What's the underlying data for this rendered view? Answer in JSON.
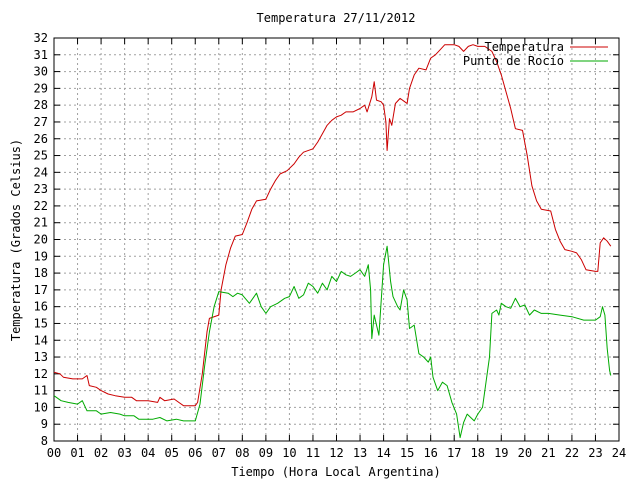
{
  "chart_data": {
    "type": "line",
    "title": "Temperatura 27/11/2012",
    "xlabel": "Tiempo (Hora Local Argentina)",
    "ylabel": "Temperatura (Grados Celsius)",
    "xlim": [
      0,
      24
    ],
    "ylim": [
      8,
      32
    ],
    "x_ticks": [
      "00",
      "01",
      "02",
      "03",
      "04",
      "05",
      "06",
      "07",
      "08",
      "09",
      "10",
      "11",
      "12",
      "13",
      "14",
      "15",
      "16",
      "17",
      "18",
      "19",
      "20",
      "21",
      "22",
      "23",
      "24"
    ],
    "y_ticks": [
      "8",
      "9",
      "10",
      "11",
      "12",
      "13",
      "14",
      "15",
      "16",
      "17",
      "18",
      "19",
      "20",
      "21",
      "22",
      "23",
      "24",
      "25",
      "26",
      "27",
      "28",
      "29",
      "30",
      "31",
      "32"
    ],
    "grid": true,
    "legend_position": "top-right",
    "series": [
      {
        "name": "Temperatura",
        "color": "#cc0000",
        "points": [
          [
            0,
            12.1
          ],
          [
            0.25,
            12.0
          ],
          [
            0.4,
            11.8
          ],
          [
            0.8,
            11.7
          ],
          [
            1.2,
            11.7
          ],
          [
            1.4,
            11.9
          ],
          [
            1.5,
            11.3
          ],
          [
            1.8,
            11.2
          ],
          [
            2.0,
            11.0
          ],
          [
            2.3,
            10.8
          ],
          [
            2.6,
            10.7
          ],
          [
            3.0,
            10.6
          ],
          [
            3.3,
            10.6
          ],
          [
            3.5,
            10.4
          ],
          [
            4.0,
            10.4
          ],
          [
            4.4,
            10.3
          ],
          [
            4.5,
            10.6
          ],
          [
            4.7,
            10.4
          ],
          [
            5.1,
            10.5
          ],
          [
            5.3,
            10.3
          ],
          [
            5.5,
            10.1
          ],
          [
            6.0,
            10.1
          ],
          [
            6.1,
            10.3
          ],
          [
            6.3,
            12.0
          ],
          [
            6.5,
            14.5
          ],
          [
            6.6,
            15.3
          ],
          [
            7.0,
            15.5
          ],
          [
            7.1,
            17.0
          ],
          [
            7.3,
            18.5
          ],
          [
            7.5,
            19.5
          ],
          [
            7.7,
            20.2
          ],
          [
            8.0,
            20.3
          ],
          [
            8.2,
            21.0
          ],
          [
            8.4,
            21.8
          ],
          [
            8.6,
            22.3
          ],
          [
            9.0,
            22.4
          ],
          [
            9.2,
            23.0
          ],
          [
            9.4,
            23.5
          ],
          [
            9.6,
            23.9
          ],
          [
            9.9,
            24.1
          ],
          [
            10.2,
            24.5
          ],
          [
            10.4,
            24.9
          ],
          [
            10.6,
            25.2
          ],
          [
            11.0,
            25.4
          ],
          [
            11.2,
            25.8
          ],
          [
            11.4,
            26.3
          ],
          [
            11.6,
            26.8
          ],
          [
            11.8,
            27.1
          ],
          [
            12.0,
            27.3
          ],
          [
            12.2,
            27.4
          ],
          [
            12.4,
            27.6
          ],
          [
            12.7,
            27.6
          ],
          [
            13.0,
            27.8
          ],
          [
            13.2,
            28.0
          ],
          [
            13.3,
            27.6
          ],
          [
            13.5,
            28.5
          ],
          [
            13.6,
            29.4
          ],
          [
            13.7,
            28.3
          ],
          [
            13.9,
            28.2
          ],
          [
            14.0,
            28.0
          ],
          [
            14.1,
            27.0
          ],
          [
            14.15,
            25.3
          ],
          [
            14.25,
            27.2
          ],
          [
            14.35,
            26.8
          ],
          [
            14.5,
            28.1
          ],
          [
            14.7,
            28.4
          ],
          [
            14.9,
            28.2
          ],
          [
            15.0,
            28.1
          ],
          [
            15.1,
            29.0
          ],
          [
            15.3,
            29.8
          ],
          [
            15.5,
            30.2
          ],
          [
            15.8,
            30.1
          ],
          [
            16.0,
            30.8
          ],
          [
            16.2,
            31.0
          ],
          [
            16.4,
            31.3
          ],
          [
            16.6,
            31.6
          ],
          [
            17.0,
            31.6
          ],
          [
            17.2,
            31.5
          ],
          [
            17.4,
            31.2
          ],
          [
            17.6,
            31.5
          ],
          [
            17.8,
            31.6
          ],
          [
            18.0,
            31.5
          ],
          [
            18.3,
            31.5
          ],
          [
            18.6,
            31.2
          ],
          [
            18.8,
            30.6
          ],
          [
            19.0,
            29.8
          ],
          [
            19.2,
            28.8
          ],
          [
            19.4,
            27.8
          ],
          [
            19.6,
            26.6
          ],
          [
            19.9,
            26.5
          ],
          [
            20.1,
            25.0
          ],
          [
            20.3,
            23.2
          ],
          [
            20.5,
            22.3
          ],
          [
            20.7,
            21.8
          ],
          [
            21.1,
            21.7
          ],
          [
            21.3,
            20.6
          ],
          [
            21.5,
            19.9
          ],
          [
            21.7,
            19.4
          ],
          [
            22.0,
            19.3
          ],
          [
            22.2,
            19.2
          ],
          [
            22.4,
            18.8
          ],
          [
            22.6,
            18.2
          ],
          [
            23.0,
            18.1
          ],
          [
            23.1,
            18.1
          ],
          [
            23.2,
            19.8
          ],
          [
            23.35,
            20.1
          ],
          [
            23.5,
            19.9
          ],
          [
            23.65,
            19.6
          ]
        ]
      },
      {
        "name": "Punto de Rocío",
        "color": "#00aa00",
        "points": [
          [
            0,
            10.7
          ],
          [
            0.3,
            10.4
          ],
          [
            0.6,
            10.3
          ],
          [
            1.0,
            10.2
          ],
          [
            1.2,
            10.4
          ],
          [
            1.4,
            9.8
          ],
          [
            1.8,
            9.8
          ],
          [
            2.0,
            9.6
          ],
          [
            2.4,
            9.7
          ],
          [
            2.8,
            9.6
          ],
          [
            3.0,
            9.5
          ],
          [
            3.4,
            9.5
          ],
          [
            3.6,
            9.3
          ],
          [
            4.2,
            9.3
          ],
          [
            4.5,
            9.4
          ],
          [
            4.8,
            9.2
          ],
          [
            5.2,
            9.3
          ],
          [
            5.5,
            9.2
          ],
          [
            6.0,
            9.2
          ],
          [
            6.2,
            10.2
          ],
          [
            6.4,
            12.5
          ],
          [
            6.6,
            14.5
          ],
          [
            6.8,
            16.0
          ],
          [
            7.0,
            16.9
          ],
          [
            7.4,
            16.8
          ],
          [
            7.6,
            16.6
          ],
          [
            7.8,
            16.8
          ],
          [
            8.0,
            16.7
          ],
          [
            8.3,
            16.2
          ],
          [
            8.6,
            16.8
          ],
          [
            8.8,
            16.0
          ],
          [
            9.0,
            15.6
          ],
          [
            9.2,
            16.0
          ],
          [
            9.5,
            16.2
          ],
          [
            9.8,
            16.5
          ],
          [
            10.0,
            16.6
          ],
          [
            10.2,
            17.2
          ],
          [
            10.4,
            16.5
          ],
          [
            10.6,
            16.7
          ],
          [
            10.8,
            17.4
          ],
          [
            11.0,
            17.2
          ],
          [
            11.2,
            16.8
          ],
          [
            11.4,
            17.4
          ],
          [
            11.6,
            17.0
          ],
          [
            11.8,
            17.8
          ],
          [
            12.0,
            17.5
          ],
          [
            12.2,
            18.1
          ],
          [
            12.4,
            17.9
          ],
          [
            12.6,
            17.8
          ],
          [
            12.8,
            18.0
          ],
          [
            13.0,
            18.2
          ],
          [
            13.2,
            17.8
          ],
          [
            13.35,
            18.5
          ],
          [
            13.45,
            17.0
          ],
          [
            13.5,
            14.1
          ],
          [
            13.6,
            15.5
          ],
          [
            13.8,
            14.3
          ],
          [
            14.0,
            18.5
          ],
          [
            14.15,
            19.6
          ],
          [
            14.3,
            17.5
          ],
          [
            14.4,
            16.6
          ],
          [
            14.6,
            16.0
          ],
          [
            14.7,
            15.8
          ],
          [
            14.85,
            17.0
          ],
          [
            15.0,
            16.4
          ],
          [
            15.1,
            14.7
          ],
          [
            15.3,
            14.9
          ],
          [
            15.5,
            13.2
          ],
          [
            15.7,
            13.0
          ],
          [
            15.9,
            12.7
          ],
          [
            16.0,
            13.0
          ],
          [
            16.1,
            11.8
          ],
          [
            16.3,
            11.0
          ],
          [
            16.5,
            11.5
          ],
          [
            16.7,
            11.3
          ],
          [
            16.9,
            10.3
          ],
          [
            17.1,
            9.6
          ],
          [
            17.25,
            8.2
          ],
          [
            17.4,
            9.1
          ],
          [
            17.55,
            9.6
          ],
          [
            17.7,
            9.4
          ],
          [
            17.85,
            9.2
          ],
          [
            18.0,
            9.6
          ],
          [
            18.2,
            10.0
          ],
          [
            18.35,
            11.5
          ],
          [
            18.5,
            13.0
          ],
          [
            18.6,
            15.6
          ],
          [
            18.8,
            15.8
          ],
          [
            18.9,
            15.5
          ],
          [
            19.0,
            16.2
          ],
          [
            19.2,
            16.0
          ],
          [
            19.4,
            15.9
          ],
          [
            19.6,
            16.5
          ],
          [
            19.8,
            16.0
          ],
          [
            20.0,
            16.1
          ],
          [
            20.2,
            15.5
          ],
          [
            20.4,
            15.8
          ],
          [
            20.7,
            15.6
          ],
          [
            21.0,
            15.6
          ],
          [
            21.5,
            15.5
          ],
          [
            22.0,
            15.4
          ],
          [
            22.5,
            15.2
          ],
          [
            23.0,
            15.2
          ],
          [
            23.2,
            15.4
          ],
          [
            23.3,
            16.0
          ],
          [
            23.4,
            15.5
          ],
          [
            23.5,
            13.5
          ],
          [
            23.6,
            12.2
          ],
          [
            23.65,
            11.9
          ]
        ]
      }
    ]
  }
}
